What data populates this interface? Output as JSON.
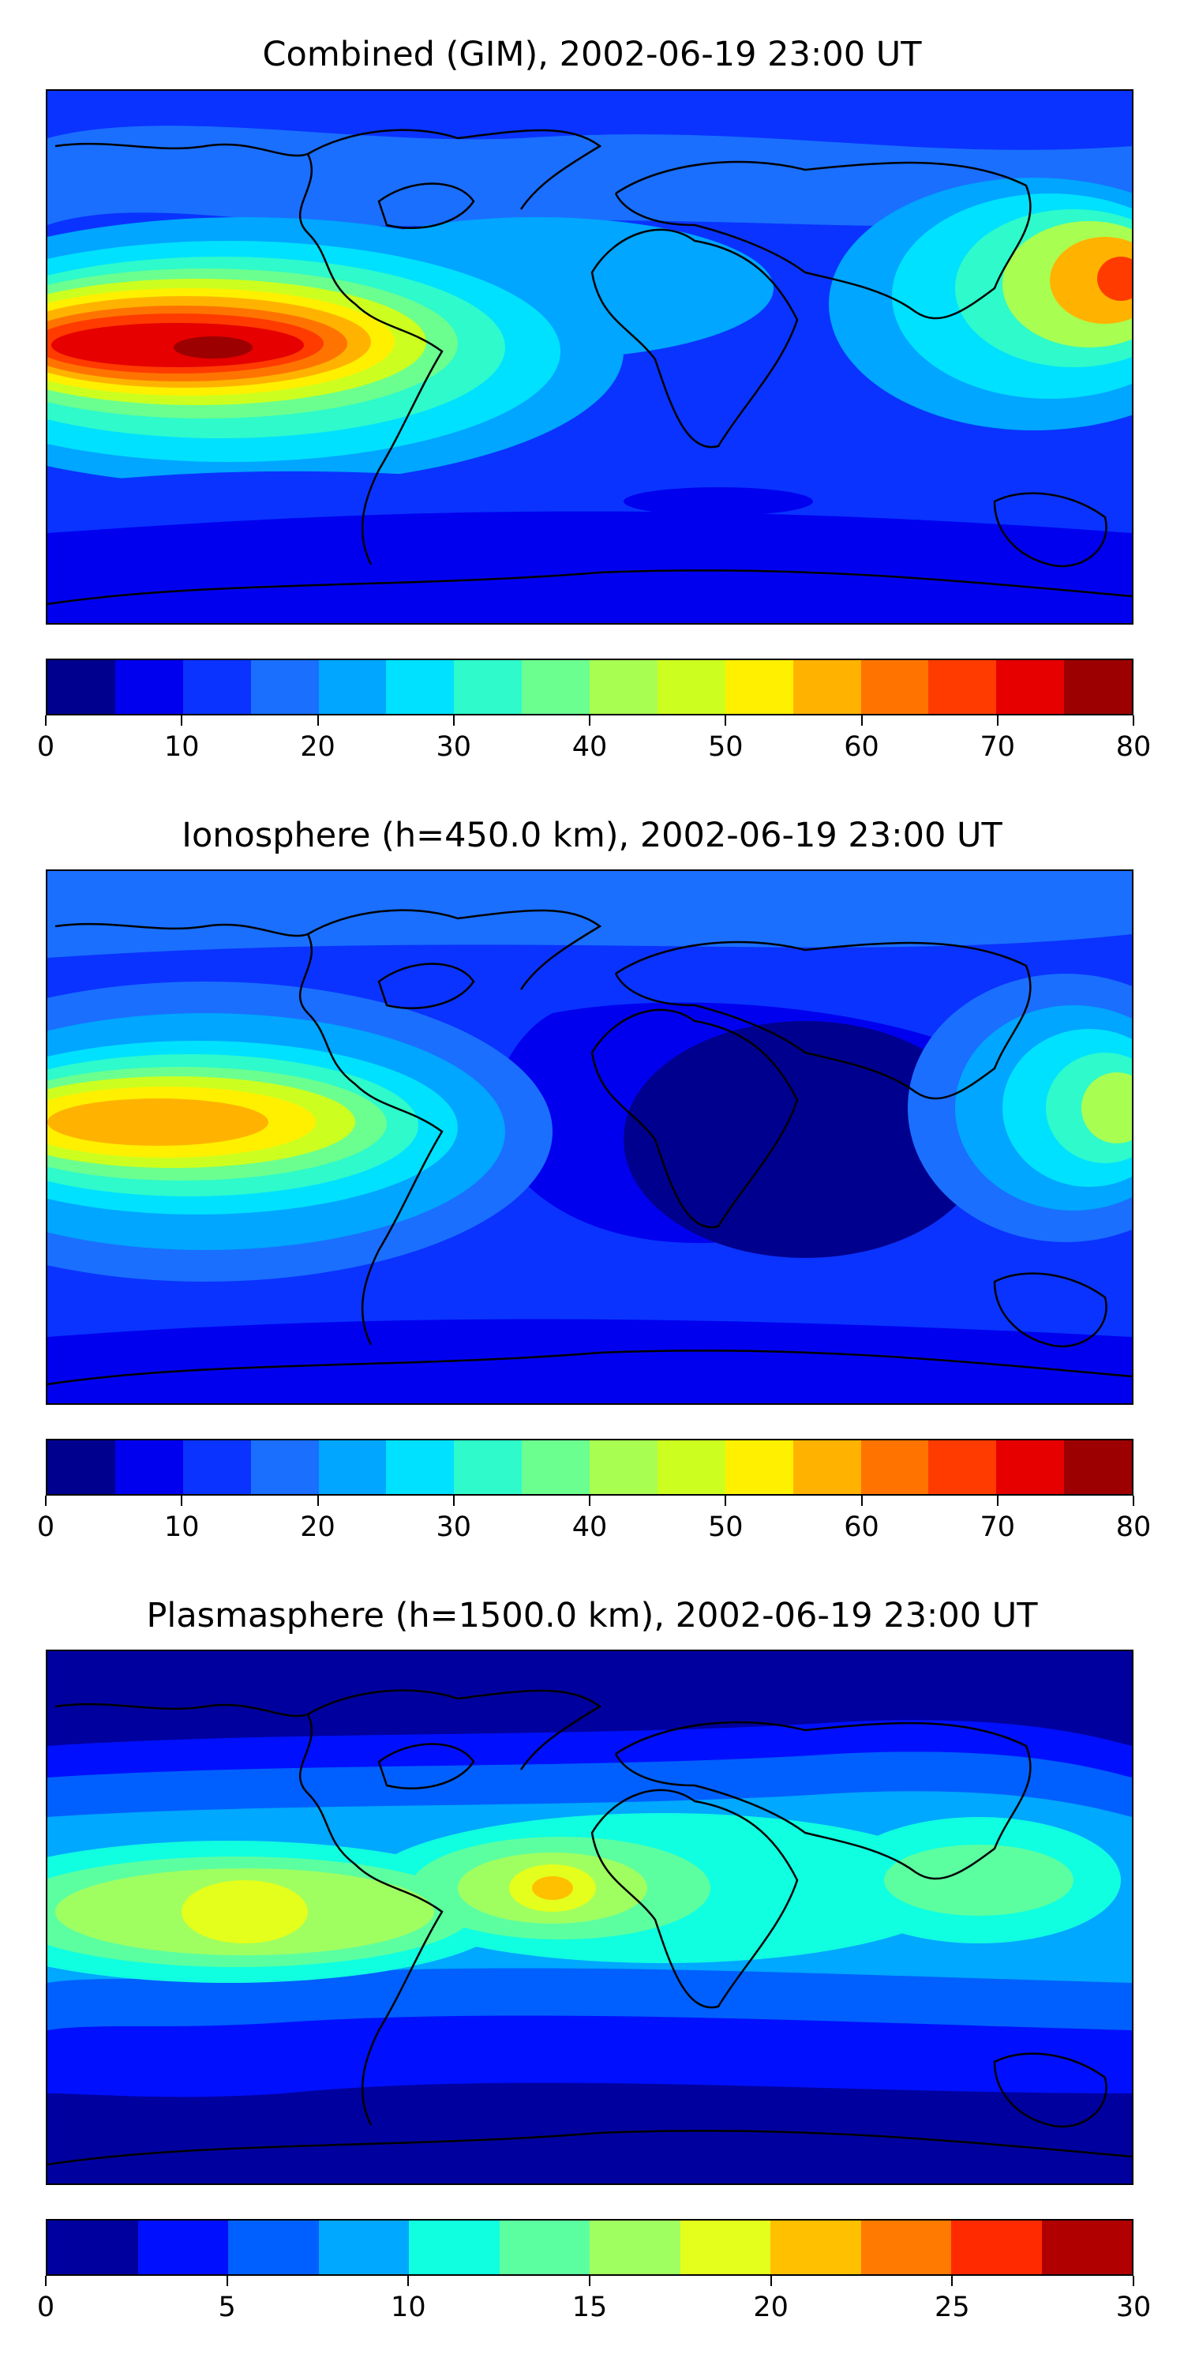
{
  "panels": [
    {
      "title": "Combined (GIM), 2002-06-19 23:00 UT",
      "colorbar": {
        "min": 0,
        "max": 80,
        "step": 5,
        "ticks": [
          "0",
          "10",
          "20",
          "30",
          "40",
          "50",
          "60",
          "70",
          "80"
        ]
      },
      "colors": [
        "#00008f",
        "#0000ef",
        "#0a33ff",
        "#1a6fff",
        "#00a6ff",
        "#00e1ff",
        "#2efacb",
        "#6bff8f",
        "#a8ff52",
        "#ccff1f",
        "#fff000",
        "#ffb300",
        "#ff7400",
        "#ff3b00",
        "#e60000",
        "#9c0000"
      ]
    },
    {
      "title": "Ionosphere  (h=450.0 km), 2002-06-19 23:00 UT",
      "colorbar": {
        "min": 0,
        "max": 80,
        "step": 5,
        "ticks": [
          "0",
          "10",
          "20",
          "30",
          "40",
          "50",
          "60",
          "70",
          "80"
        ]
      },
      "colors": [
        "#00008f",
        "#0000ef",
        "#0a33ff",
        "#1a6fff",
        "#00a6ff",
        "#00e1ff",
        "#2efacb",
        "#6bff8f",
        "#a8ff52",
        "#ccff1f",
        "#fff000",
        "#ffb300",
        "#ff7400",
        "#ff3b00",
        "#e60000",
        "#9c0000"
      ]
    },
    {
      "title": "Plasmasphere (h=1500.0 km), 2002-06-19 23:00 UT",
      "colorbar": {
        "min": 0,
        "max": 30,
        "step": 2.5,
        "ticks": [
          "0",
          "5",
          "10",
          "15",
          "20",
          "25",
          "30"
        ]
      },
      "colors": [
        "#00009f",
        "#0010ff",
        "#0060ff",
        "#00a8ff",
        "#10ffe0",
        "#5cffa0",
        "#a0ff60",
        "#e4ff1c",
        "#ffc000",
        "#ff7a00",
        "#ff2a00",
        "#b00000"
      ]
    }
  ]
}
